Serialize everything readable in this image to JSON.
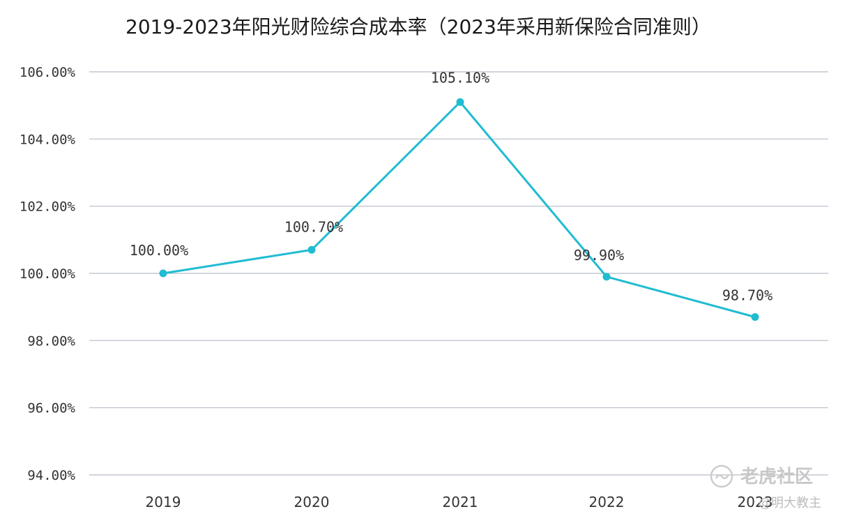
{
  "chart_data": {
    "type": "line",
    "title": "2019-2023年阳光财险综合成本率（2023年采用新保险合同准则）",
    "categories": [
      "2019",
      "2020",
      "2021",
      "2022",
      "2023"
    ],
    "series": [
      {
        "values": [
          100.0,
          100.7,
          105.1,
          99.9,
          98.7
        ],
        "data_labels": [
          "100.00%",
          "100.70%",
          "105.10%",
          "99.90%",
          "98.70%"
        ]
      }
    ],
    "y_ticks": [
      94,
      96,
      98,
      100,
      102,
      104,
      106
    ],
    "y_tick_labels": [
      "94.00%",
      "96.00%",
      "98.00%",
      "100.00%",
      "102.00%",
      "104.00%",
      "106.00%"
    ],
    "ylim": [
      94,
      106
    ],
    "grid": true,
    "legend": "none",
    "colors": {
      "series": "#1fbcd2",
      "grid": "#b8bcc8"
    }
  },
  "watermark": {
    "brand": "老虎社区",
    "author": "@明大教主"
  }
}
